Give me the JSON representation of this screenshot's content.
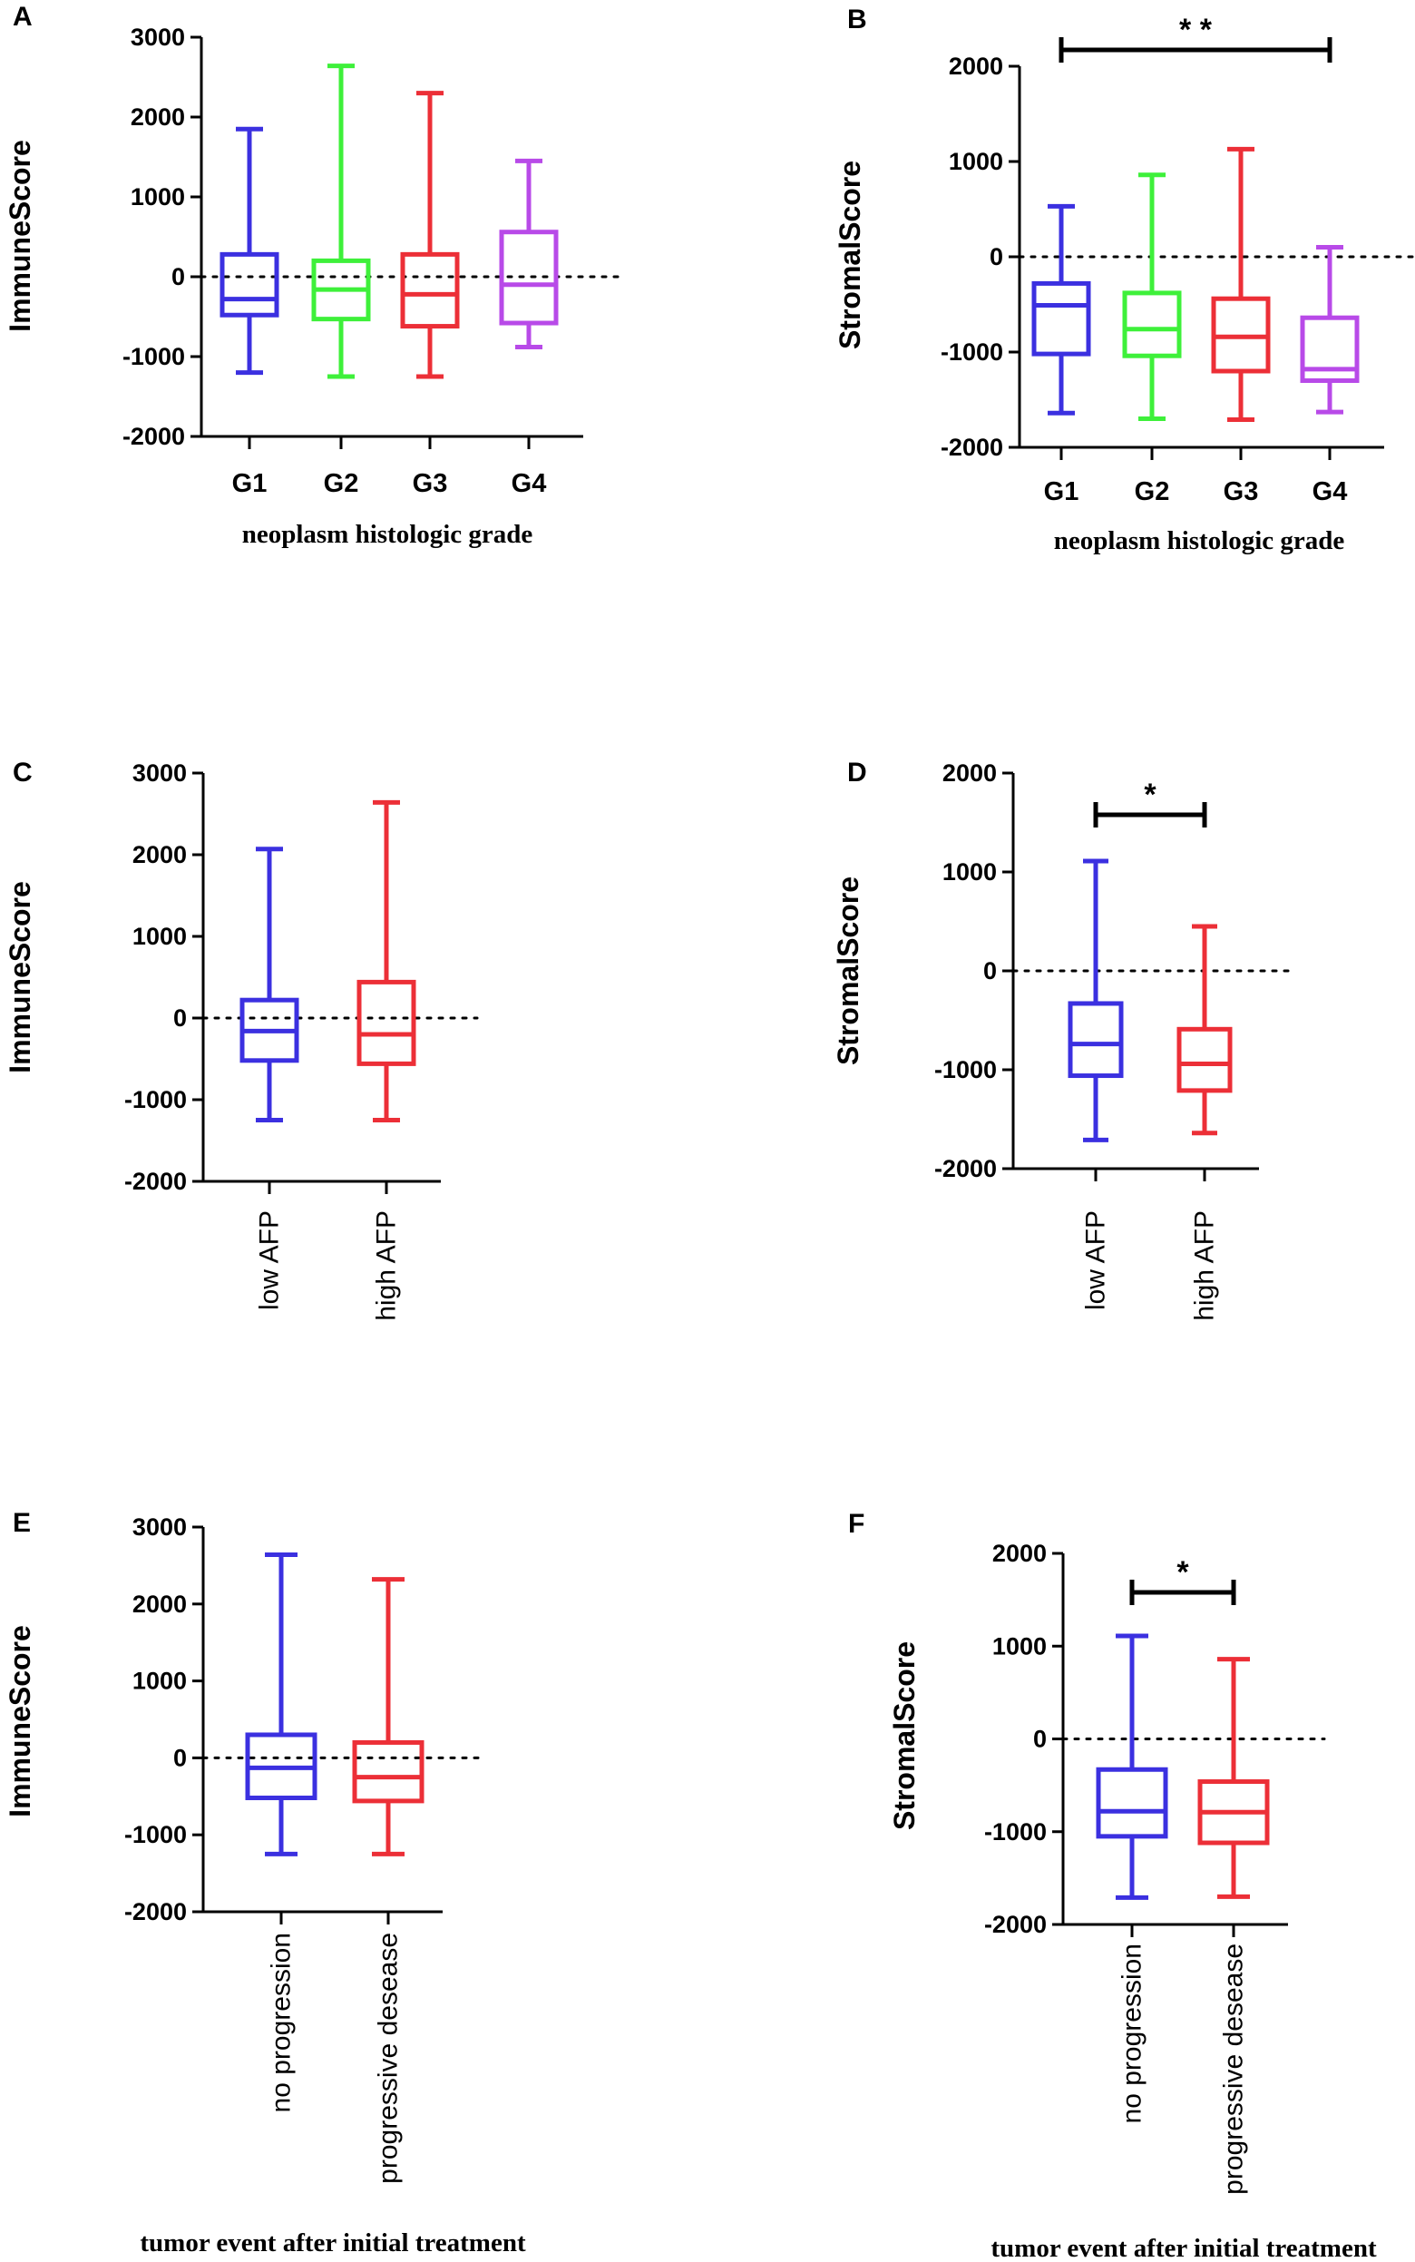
{
  "chart_data": [
    {
      "panel": "A",
      "type": "boxplot",
      "ylabel": "ImmuneScore",
      "xlabel": "neoplasm histologic grade",
      "ylim": [
        -2000,
        3000
      ],
      "yticks": [
        3000,
        2000,
        1000,
        0,
        -1000,
        -2000
      ],
      "categories": [
        "G1",
        "G2",
        "G3",
        "G4"
      ],
      "colors": [
        "#3b30e0",
        "#3ef03a",
        "#ec2f37",
        "#b84ae8"
      ],
      "boxes": [
        {
          "min": -1200,
          "q1": -480,
          "median": -280,
          "q3": 280,
          "max": 1850
        },
        {
          "min": -1250,
          "q1": -530,
          "median": -160,
          "q3": 200,
          "max": 2640
        },
        {
          "min": -1250,
          "q1": -620,
          "median": -220,
          "q3": 280,
          "max": 2300
        },
        {
          "min": -880,
          "q1": -580,
          "median": -100,
          "q3": 560,
          "max": 1450
        }
      ],
      "reference_line": 0,
      "significance": null
    },
    {
      "panel": "B",
      "type": "boxplot",
      "ylabel": "StromalScore",
      "xlabel": "neoplasm histologic grade",
      "ylim": [
        -2000,
        2000
      ],
      "yticks": [
        2000,
        1000,
        0,
        -1000,
        -2000
      ],
      "categories": [
        "G1",
        "G2",
        "G3",
        "G4"
      ],
      "colors": [
        "#3b30e0",
        "#3ef03a",
        "#ec2f37",
        "#b84ae8"
      ],
      "boxes": [
        {
          "min": -1640,
          "q1": -1020,
          "median": -510,
          "q3": -280,
          "max": 530
        },
        {
          "min": -1700,
          "q1": -1040,
          "median": -760,
          "q3": -380,
          "max": 860
        },
        {
          "min": -1710,
          "q1": -1200,
          "median": -840,
          "q3": -440,
          "max": 1130
        },
        {
          "min": -1630,
          "q1": -1300,
          "median": -1180,
          "q3": -640,
          "max": 100
        }
      ],
      "reference_line": 0,
      "significance": {
        "from": 0,
        "to": 3,
        "label": "* *"
      }
    },
    {
      "panel": "C",
      "type": "boxplot",
      "ylabel": "ImmuneScore",
      "xlabel": "",
      "ylim": [
        -2000,
        3000
      ],
      "yticks": [
        3000,
        2000,
        1000,
        0,
        -1000,
        -2000
      ],
      "categories": [
        "low AFP",
        "high AFP"
      ],
      "colors": [
        "#3b30e0",
        "#ec2f37"
      ],
      "boxes": [
        {
          "min": -1250,
          "q1": -520,
          "median": -160,
          "q3": 220,
          "max": 2070
        },
        {
          "min": -1250,
          "q1": -560,
          "median": -200,
          "q3": 440,
          "max": 2640
        }
      ],
      "reference_line": 0,
      "significance": null
    },
    {
      "panel": "D",
      "type": "boxplot",
      "ylabel": "StromalScore",
      "xlabel": "",
      "ylim": [
        -2000,
        2000
      ],
      "yticks": [
        2000,
        1000,
        0,
        -1000,
        -2000
      ],
      "categories": [
        "low AFP",
        "high AFP"
      ],
      "colors": [
        "#3b30e0",
        "#ec2f37"
      ],
      "boxes": [
        {
          "min": -1710,
          "q1": -1060,
          "median": -740,
          "q3": -330,
          "max": 1110
        },
        {
          "min": -1640,
          "q1": -1210,
          "median": -940,
          "q3": -590,
          "max": 450
        }
      ],
      "reference_line": 0,
      "significance": {
        "from": 0,
        "to": 1,
        "label": "*"
      }
    },
    {
      "panel": "E",
      "type": "boxplot",
      "ylabel": "ImmuneScore",
      "xlabel": "tumor event after initial treatment",
      "ylim": [
        -2000,
        3000
      ],
      "yticks": [
        3000,
        2000,
        1000,
        0,
        -1000,
        -2000
      ],
      "categories": [
        "no progression",
        "progressive desease"
      ],
      "colors": [
        "#3b30e0",
        "#ec2f37"
      ],
      "boxes": [
        {
          "min": -1250,
          "q1": -520,
          "median": -130,
          "q3": 300,
          "max": 2640
        },
        {
          "min": -1250,
          "q1": -560,
          "median": -250,
          "q3": 200,
          "max": 2320
        }
      ],
      "reference_line": 0,
      "significance": null
    },
    {
      "panel": "F",
      "type": "boxplot",
      "ylabel": "StromalScore",
      "xlabel": "tumor event after initial treatment",
      "ylim": [
        -2000,
        2000
      ],
      "yticks": [
        2000,
        1000,
        0,
        -1000,
        -2000
      ],
      "categories": [
        "no progression",
        "progressive desease"
      ],
      "colors": [
        "#3b30e0",
        "#ec2f37"
      ],
      "boxes": [
        {
          "min": -1710,
          "q1": -1050,
          "median": -780,
          "q3": -330,
          "max": 1110
        },
        {
          "min": -1700,
          "q1": -1120,
          "median": -790,
          "q3": -460,
          "max": 860
        }
      ],
      "reference_line": 0,
      "significance": {
        "from": 0,
        "to": 1,
        "label": "*"
      }
    }
  ]
}
